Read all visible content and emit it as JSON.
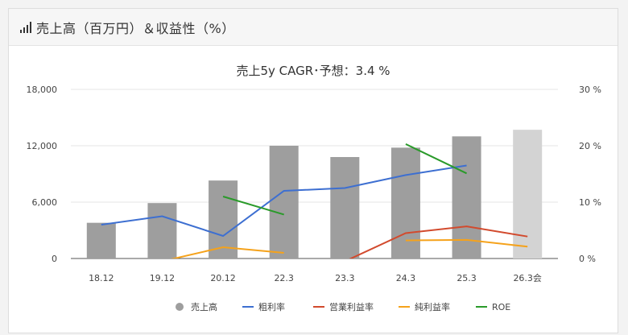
{
  "header": {
    "title": "売上高（百万円）＆収益性（%）",
    "icon": "bar-signal-icon"
  },
  "chart_data": {
    "type": "bar",
    "title": "売上5y CAGR･予想：3.4 %",
    "categories": [
      "18.12",
      "19.12",
      "20.12",
      "22.3",
      "23.3",
      "24.3",
      "25.3",
      "26.3会"
    ],
    "left_axis": {
      "ticks": [
        "0",
        "6,000",
        "12,000",
        "18,000"
      ],
      "min": 0,
      "max": 18000
    },
    "right_axis": {
      "ticks": [
        "0 %",
        "10 %",
        "20 %",
        "30 %"
      ],
      "min": 0,
      "max": 30
    },
    "grid": true,
    "legend_position": "bottom",
    "bars": {
      "name": "売上高",
      "values": [
        3800,
        5900,
        8300,
        12000,
        10800,
        11800,
        13000,
        13700
      ],
      "colors": [
        "#9e9e9e",
        "#9e9e9e",
        "#9e9e9e",
        "#9e9e9e",
        "#9e9e9e",
        "#9e9e9e",
        "#9e9e9e",
        "#d3d3d3"
      ]
    },
    "series": [
      {
        "name": "粗利率",
        "color": "#3d6fd1",
        "values": [
          6.0,
          7.5,
          4.0,
          12.0,
          12.5,
          14.8,
          16.5,
          null
        ]
      },
      {
        "name": "営業利益率",
        "color": "#d24a2d",
        "values": [
          null,
          null,
          null,
          null,
          -0.5,
          4.5,
          5.7,
          3.9
        ]
      },
      {
        "name": "純利益率",
        "color": "#f5a21b",
        "values": [
          null,
          -0.5,
          2.0,
          1.0,
          null,
          3.2,
          3.3,
          2.1
        ]
      },
      {
        "name": "ROE",
        "color": "#2a9a2a",
        "values": [
          null,
          null,
          11.0,
          7.8,
          null,
          20.3,
          15.1,
          null
        ]
      }
    ]
  }
}
